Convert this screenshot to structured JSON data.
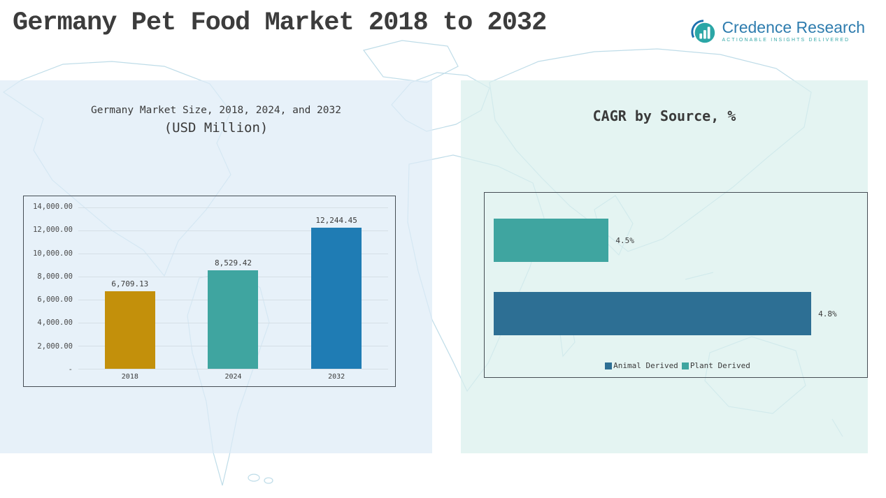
{
  "page": {
    "title": "Germany Pet Food Market 2018 to 2032"
  },
  "logo": {
    "brand": "Credence Research",
    "tagline": "Actionable Insights Delivered",
    "brand_color": "#2e7cae",
    "tagline_color": "#35a8a8",
    "icon_color": "#2ba6a6"
  },
  "chart_data": [
    {
      "type": "bar",
      "orientation": "vertical",
      "title": "Germany Market Size, 2018, 2024, and 2032",
      "subtitle": "(USD Million)",
      "categories": [
        "2018",
        "2024",
        "2032"
      ],
      "values": [
        6709.13,
        8529.42,
        12244.45
      ],
      "value_labels": [
        "6,709.13",
        "8,529.42",
        "12,244.45"
      ],
      "bar_colors": [
        "#c3900b",
        "#3fa5a0",
        "#1f7cb4"
      ],
      "ylim": [
        0,
        14000
      ],
      "ytick_labels": [
        "14,000.00",
        "12,000.00",
        "10,000.00",
        "8,000.00",
        "6,000.00",
        "4,000.00",
        "2,000.00",
        "-"
      ],
      "grid": true,
      "legend": null
    },
    {
      "type": "bar",
      "orientation": "horizontal",
      "title": "CAGR by Source, %",
      "categories": [
        "Plant Derived",
        "Animal Derived"
      ],
      "values": [
        4.5,
        4.8
      ],
      "value_labels": [
        "4.5%",
        "4.8%"
      ],
      "bar_colors": [
        "#3fa5a0",
        "#2d6f94"
      ],
      "xlim": [
        4.33,
        4.87
      ],
      "grid": false,
      "legend": [
        {
          "label": "Animal Derived",
          "color": "#2d6f94"
        },
        {
          "label": "Plant Derived",
          "color": "#3fa5a0"
        }
      ],
      "legend_position": "bottom"
    }
  ]
}
